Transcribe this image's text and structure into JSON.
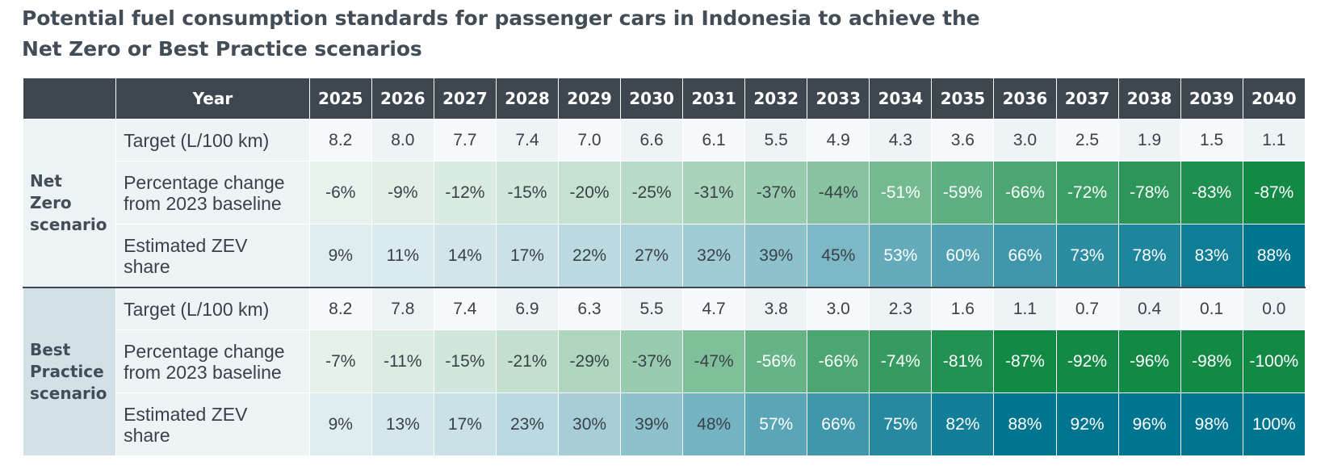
{
  "title": "Potential fuel consumption standards for passenger cars in Indonesia to achieve the Net Zero or Best Practice scenarios",
  "title_line1": "Potential fuel consumption standards for passenger cars in Indonesia to achieve the",
  "title_line2": "Net Zero or Best Practice scenarios",
  "header": {
    "year_label": "Year"
  },
  "colors": {
    "header_bg": "#3e4750",
    "pct_scale": [
      "#f6f9f7",
      "#128a45"
    ],
    "zev_scale": [
      "#f6f9fa",
      "#00758f"
    ],
    "target_bg": "#f4f7f8"
  },
  "chart_data": {
    "type": "table",
    "title": "Potential fuel consumption standards for passenger cars in Indonesia to achieve the Net Zero or Best Practice scenarios",
    "years": [
      "2025",
      "2026",
      "2027",
      "2028",
      "2029",
      "2030",
      "2031",
      "2032",
      "2033",
      "2034",
      "2035",
      "2036",
      "2037",
      "2038",
      "2039",
      "2040"
    ],
    "scenarios": [
      {
        "name": "Net Zero scenario",
        "name_lines": [
          "Net",
          "Zero",
          "scenario"
        ],
        "rows": [
          {
            "label": "Target (L/100 km)",
            "kind": "target",
            "values": [
              "8.2",
              "8.0",
              "7.7",
              "7.4",
              "7.0",
              "6.6",
              "6.1",
              "5.5",
              "4.9",
              "4.3",
              "3.6",
              "3.0",
              "2.5",
              "1.9",
              "1.5",
              "1.1"
            ]
          },
          {
            "label": "Percentage change from 2023 baseline",
            "label_lines": [
              "Percentage change",
              "from 2023 baseline"
            ],
            "kind": "pct",
            "values": [
              "-6%",
              "-9%",
              "-12%",
              "-15%",
              "-20%",
              "-25%",
              "-31%",
              "-37%",
              "-44%",
              "-51%",
              "-59%",
              "-66%",
              "-72%",
              "-78%",
              "-83%",
              "-87%"
            ]
          },
          {
            "label": "Estimated ZEV share",
            "label_lines": [
              "Estimated ZEV",
              "share"
            ],
            "kind": "zev",
            "values": [
              "9%",
              "11%",
              "14%",
              "17%",
              "22%",
              "27%",
              "32%",
              "39%",
              "45%",
              "53%",
              "60%",
              "66%",
              "73%",
              "78%",
              "83%",
              "88%"
            ]
          }
        ]
      },
      {
        "name": "Best Practice scenario",
        "name_lines": [
          "Best",
          "Practice",
          "scenario"
        ],
        "rows": [
          {
            "label": "Target (L/100 km)",
            "kind": "target",
            "values": [
              "8.2",
              "7.8",
              "7.4",
              "6.9",
              "6.3",
              "5.5",
              "4.7",
              "3.8",
              "3.0",
              "2.3",
              "1.6",
              "1.1",
              "0.7",
              "0.4",
              "0.1",
              "0.0"
            ]
          },
          {
            "label": "Percentage change from 2023 baseline",
            "label_lines": [
              "Percentage change",
              "from 2023 baseline"
            ],
            "kind": "pct",
            "values": [
              "-7%",
              "-11%",
              "-15%",
              "-21%",
              "-29%",
              "-37%",
              "-47%",
              "-56%",
              "-66%",
              "-74%",
              "-81%",
              "-87%",
              "-92%",
              "-96%",
              "-98%",
              "-100%"
            ]
          },
          {
            "label": "Estimated ZEV share",
            "label_lines": [
              "Estimated ZEV",
              "share"
            ],
            "kind": "zev",
            "values": [
              "9%",
              "13%",
              "17%",
              "23%",
              "30%",
              "39%",
              "48%",
              "57%",
              "66%",
              "75%",
              "82%",
              "88%",
              "92%",
              "96%",
              "98%",
              "100%"
            ]
          }
        ]
      }
    ]
  }
}
